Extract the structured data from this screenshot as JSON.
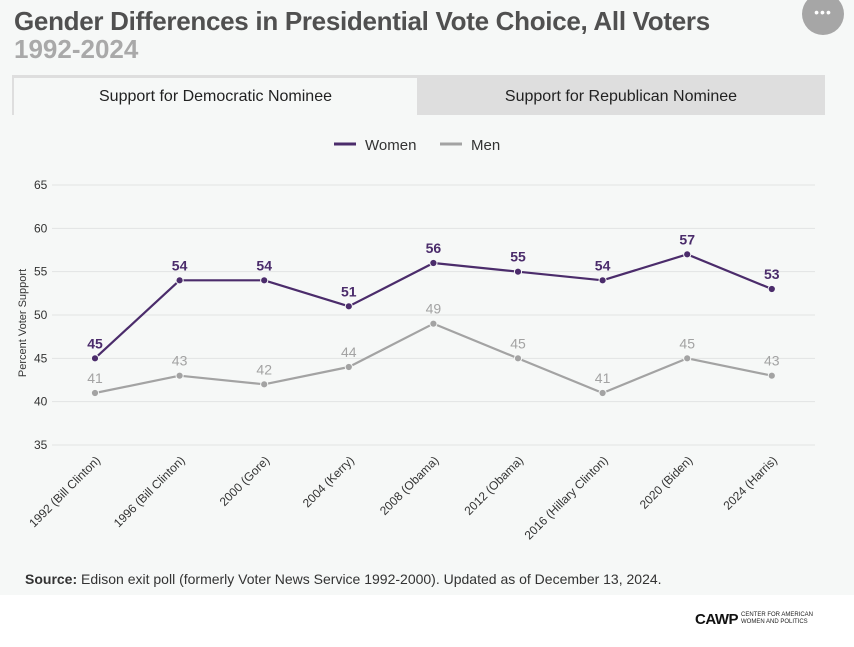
{
  "header": {
    "title": "Gender Differences in Presidential Vote Choice, All Voters",
    "subtitle": "1992-2024",
    "more_label": "•••"
  },
  "tabs": [
    {
      "label": "Support for Democratic Nominee",
      "active": true
    },
    {
      "label": "Support for Republican Nominee",
      "active": false
    }
  ],
  "chart_data": {
    "type": "line",
    "title": "",
    "xlabel": "",
    "ylabel": "Percent Voter Support",
    "ylim": [
      35,
      65
    ],
    "yticks": [
      35,
      40,
      45,
      50,
      55,
      60,
      65
    ],
    "grid": true,
    "legend_position": "top-center",
    "categories": [
      "1992 (Bill Clinton)",
      "1996 (Bill Clinton)",
      "2000 (Gore)",
      "2004 (Kerry)",
      "2008 (Obama)",
      "2012 (Obama)",
      "2016 (Hillary Clinton)",
      "2020 (Biden)",
      "2024 (Harris)"
    ],
    "series": [
      {
        "name": "Women",
        "color": "#4b2c6b",
        "values": [
          45,
          54,
          54,
          51,
          56,
          55,
          54,
          57,
          53
        ]
      },
      {
        "name": "Men",
        "color": "#a3a3a3",
        "values": [
          41,
          43,
          42,
          44,
          49,
          45,
          41,
          45,
          43
        ]
      }
    ]
  },
  "footer": {
    "source_label": "Source:",
    "source_text": " Edison exit poll (formerly Voter News Service 1992-2000). Updated as of December 13, 2024.",
    "logo_mark": "CAWP",
    "logo_text": "Center for American Women and Politics"
  }
}
